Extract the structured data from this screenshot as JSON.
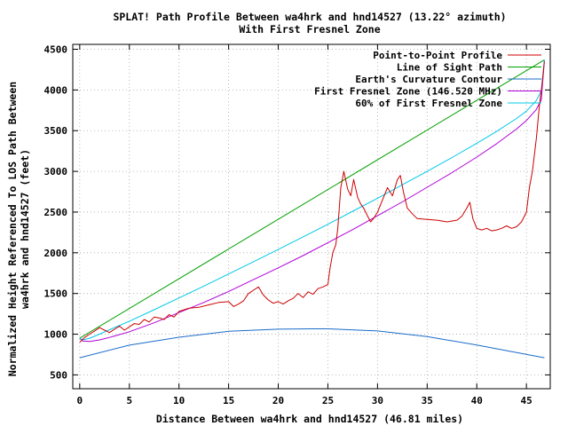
{
  "chart_data": {
    "type": "line",
    "title_line1": "SPLAT! Path Profile Between wa4hrk and hnd14527 (13.22° azimuth)",
    "title_line2": "With First Fresnel Zone",
    "xlabel": "Distance Between wa4hrk and hnd14527 (46.81 miles)",
    "ylabel_line1": "Normalized Height Referenced To LOS Path Between",
    "ylabel_line2": "wa4hrk and hnd14527 (feet)",
    "xlim": [
      -0.7,
      47.4
    ],
    "ylim": [
      330,
      4560
    ],
    "xticks": [
      0,
      5,
      10,
      15,
      20,
      25,
      30,
      35,
      40,
      45
    ],
    "yticks": [
      500,
      1000,
      1500,
      2000,
      2500,
      3000,
      3500,
      4000,
      4500
    ],
    "grid": true,
    "legend_position": "top-right",
    "series": [
      {
        "name": "Point-to-Point Profile",
        "color": "#cc0000",
        "x": [
          0,
          0.5,
          1,
          1.5,
          2,
          2.5,
          3,
          3.5,
          4,
          4.5,
          5,
          5.5,
          6,
          6.5,
          7,
          7.5,
          8,
          8.5,
          9,
          9.5,
          10,
          11,
          12,
          13,
          14,
          15,
          15.5,
          16,
          16.5,
          17,
          17.5,
          18,
          18.5,
          19,
          19.5,
          20,
          20.5,
          21,
          21.5,
          22,
          22.5,
          23,
          23.5,
          24,
          24.5,
          25,
          25.2,
          25.5,
          25.8,
          26,
          26.3,
          26.6,
          27,
          27.3,
          27.6,
          28,
          28.3,
          28.6,
          29,
          29.3,
          29.6,
          30,
          30.5,
          31,
          31.5,
          32,
          32.3,
          32.6,
          33,
          33.5,
          34,
          35,
          36,
          37,
          38,
          38.5,
          39,
          39.3,
          39.6,
          40,
          40.5,
          41,
          41.5,
          42,
          42.5,
          43,
          43.5,
          44,
          44.5,
          45,
          45.3,
          45.6,
          46,
          46.3,
          46.6,
          46.81
        ],
        "y": [
          900,
          960,
          1000,
          1040,
          1080,
          1050,
          1020,
          1060,
          1100,
          1050,
          1090,
          1130,
          1120,
          1180,
          1150,
          1210,
          1200,
          1180,
          1240,
          1210,
          1280,
          1320,
          1330,
          1360,
          1390,
          1400,
          1340,
          1370,
          1410,
          1500,
          1540,
          1580,
          1480,
          1420,
          1380,
          1400,
          1370,
          1410,
          1440,
          1500,
          1450,
          1520,
          1490,
          1560,
          1580,
          1610,
          1800,
          2000,
          2100,
          2300,
          2800,
          3000,
          2780,
          2700,
          2900,
          2680,
          2600,
          2550,
          2450,
          2380,
          2420,
          2500,
          2650,
          2800,
          2700,
          2900,
          2950,
          2750,
          2550,
          2480,
          2420,
          2410,
          2400,
          2380,
          2400,
          2450,
          2550,
          2620,
          2420,
          2300,
          2280,
          2300,
          2270,
          2280,
          2300,
          2330,
          2300,
          2320,
          2380,
          2500,
          2800,
          3000,
          3400,
          3800,
          4100,
          4350
        ]
      },
      {
        "name": "Line of Sight Path",
        "color": "#00a000",
        "x": [
          0,
          46.81
        ],
        "y": [
          950,
          4370
        ]
      },
      {
        "name": "Earth's Curvature Contour",
        "color": "#1a6cc8",
        "x": [
          0,
          5,
          10,
          15,
          20,
          23.4,
          25,
          30,
          35,
          40,
          46.81
        ],
        "y": [
          710,
          865,
          962,
          1035,
          1062,
          1066,
          1066,
          1040,
          970,
          868,
          710
        ]
      },
      {
        "name": "First Fresnel Zone (146.520 MHz)",
        "color": "#b000d8",
        "x": [
          0,
          0.3,
          1,
          2,
          3,
          5,
          7.5,
          10,
          12.5,
          15,
          17.5,
          20,
          22.5,
          25,
          27.5,
          30,
          32.5,
          35,
          37.5,
          40,
          42,
          44,
          45,
          46,
          46.5,
          46.81
        ],
        "y": [
          950,
          915,
          910,
          930,
          960,
          1030,
          1140,
          1265,
          1390,
          1525,
          1670,
          1815,
          1965,
          2125,
          2285,
          2455,
          2625,
          2805,
          2985,
          3175,
          3340,
          3520,
          3625,
          3760,
          3880,
          4370
        ]
      },
      {
        "name": "60% of First Fresnel Zone",
        "color": "#00c8e8",
        "x": [
          0,
          0.3,
          1,
          2,
          3,
          5,
          7.5,
          10,
          12.5,
          15,
          17.5,
          20,
          22.5,
          25,
          27.5,
          30,
          32.5,
          35,
          37.5,
          40,
          42,
          44,
          45,
          46,
          46.5,
          46.81
        ],
        "y": [
          950,
          930,
          950,
          1000,
          1055,
          1160,
          1300,
          1445,
          1590,
          1740,
          1890,
          2040,
          2195,
          2350,
          2510,
          2670,
          2835,
          3000,
          3170,
          3345,
          3490,
          3650,
          3740,
          3870,
          3990,
          4370
        ]
      }
    ]
  }
}
